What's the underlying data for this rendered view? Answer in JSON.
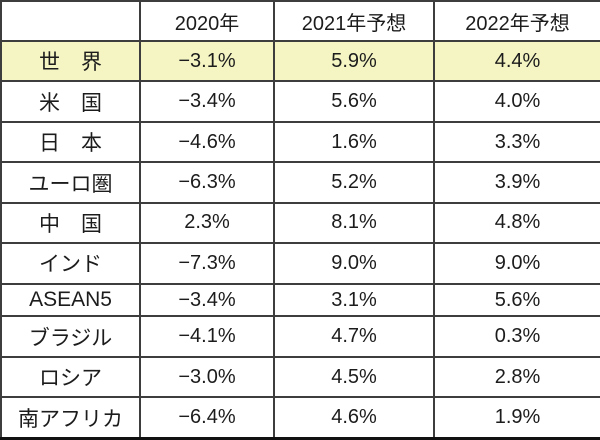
{
  "colors": {
    "highlight_bg": "#f5f5c4",
    "negative_text": "#e8211d",
    "text": "#1c1c1c",
    "border": "#3d3d3d",
    "thick_border": "#111111"
  },
  "chart_data": {
    "type": "table",
    "columns": [
      "",
      "2020年",
      "2021年予想",
      "2022年予想"
    ],
    "rows": [
      {
        "label": "世　界",
        "values_display": [
          "−3.1%",
          "5.9%",
          "4.4%"
        ],
        "values": [
          -3.1,
          5.9,
          4.4
        ],
        "highlighted": true
      },
      {
        "label": "米　国",
        "values_display": [
          "−3.4%",
          "5.6%",
          "4.0%"
        ],
        "values": [
          -3.4,
          5.6,
          4.0
        ],
        "highlighted": false
      },
      {
        "label": "日　本",
        "values_display": [
          "−4.6%",
          "1.6%",
          "3.3%"
        ],
        "values": [
          -4.6,
          1.6,
          3.3
        ],
        "highlighted": false
      },
      {
        "label": "ユーロ圏",
        "values_display": [
          "−6.3%",
          "5.2%",
          "3.9%"
        ],
        "values": [
          -6.3,
          5.2,
          3.9
        ],
        "highlighted": false
      },
      {
        "label": "中　国",
        "values_display": [
          "2.3%",
          "8.1%",
          "4.8%"
        ],
        "values": [
          2.3,
          8.1,
          4.8
        ],
        "highlighted": false
      },
      {
        "label": "インド",
        "values_display": [
          "−7.3%",
          "9.0%",
          "9.0%"
        ],
        "values": [
          -7.3,
          9.0,
          9.0
        ],
        "highlighted": false
      },
      {
        "label": "ASEAN5",
        "values_display": [
          "−3.4%",
          "3.1%",
          "5.6%"
        ],
        "values": [
          -3.4,
          3.1,
          5.6
        ],
        "highlighted": false
      },
      {
        "label": "ブラジル",
        "values_display": [
          "−4.1%",
          "4.7%",
          "0.3%"
        ],
        "values": [
          -4.1,
          4.7,
          0.3
        ],
        "highlighted": false
      },
      {
        "label": "ロシア",
        "values_display": [
          "−3.0%",
          "4.5%",
          "2.8%"
        ],
        "values": [
          -3.0,
          4.5,
          2.8
        ],
        "highlighted": false
      },
      {
        "label": "南アフリカ",
        "values_display": [
          "−6.4%",
          "4.6%",
          "1.9%"
        ],
        "values": [
          -6.4,
          4.6,
          1.9
        ],
        "highlighted": false
      }
    ]
  }
}
